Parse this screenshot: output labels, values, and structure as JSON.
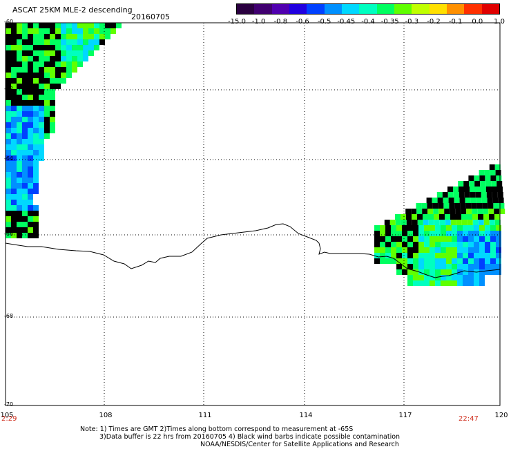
{
  "header": {
    "title": "ASCAT 25KM MLE-2 descending",
    "date": "20160705"
  },
  "colorbar": {
    "labels": [
      "-15.0",
      "-1.0",
      "-0.8",
      "-0.6",
      "-0.5",
      "-0.45",
      "-0.4",
      "-0.35",
      "-0.3",
      "-0.2",
      "-0.1",
      "0.0",
      "1.0"
    ],
    "colors": [
      "#2a0040",
      "#400070",
      "#5000b0",
      "#2000e0",
      "#0040ff",
      "#0090ff",
      "#00d8ff",
      "#00ffc0",
      "#00ff60",
      "#60ff00",
      "#c0ff00",
      "#ffe000",
      "#ff9000",
      "#ff3000",
      "#e00000"
    ]
  },
  "map": {
    "lat_labels": [
      "-60",
      "-62",
      "-64",
      "-66",
      "-68",
      "-70"
    ],
    "lon_labels": [
      "105",
      "108",
      "111",
      "114",
      "117",
      "120"
    ],
    "time_left": "2:29",
    "time_right": "22:47",
    "extent": {
      "lon_min": 105,
      "lon_max": 120,
      "lat_max": -60,
      "lat_min": -70
    }
  },
  "notes": {
    "line1": "Note: 1) Times are GMT 2)Times along bottom correspond to measurement at -65S",
    "line2": "3)Data buffer is 22 hrs from 20160705 4) Black wind barbs indicate possible contamination",
    "line3": "NOAA/NESDIS/Center for Satellite Applications and Research"
  }
}
